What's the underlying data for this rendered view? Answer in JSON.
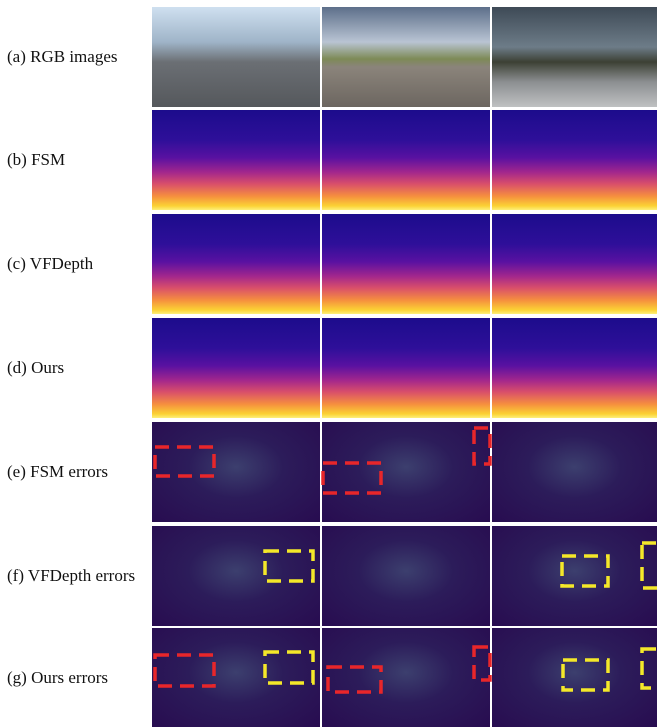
{
  "rows": [
    {
      "label": "(a) RGB images"
    },
    {
      "label": "(b) FSM"
    },
    {
      "label": "(c) VFDepth"
    },
    {
      "label": "(d) Ours"
    },
    {
      "label": "(e) FSM errors"
    },
    {
      "label": "(f) VFDepth errors"
    },
    {
      "label": "(g) Ours errors"
    }
  ]
}
